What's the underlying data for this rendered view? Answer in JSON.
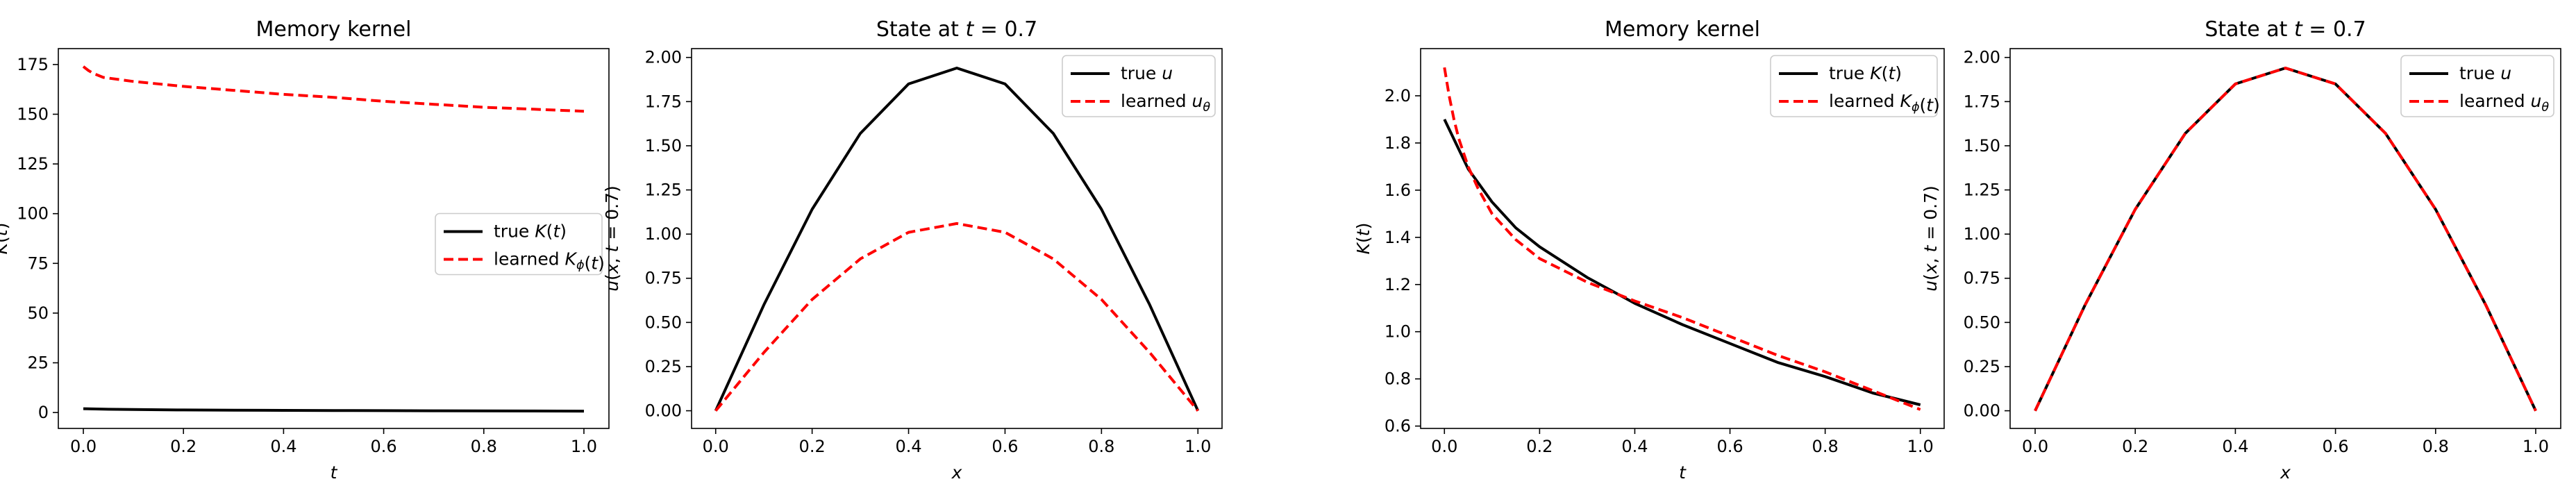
{
  "chart_data": [
    {
      "type": "line",
      "title": "Memory kernel",
      "xlabel": "t",
      "ylabel": "K(t)",
      "xlim": [
        -0.05,
        1.05
      ],
      "ylim": [
        -8,
        183
      ],
      "xticks": [
        "0.0",
        "0.2",
        "0.4",
        "0.6",
        "0.8",
        "1.0"
      ],
      "yticks": [
        "0",
        "25",
        "50",
        "75",
        "100",
        "125",
        "150",
        "175"
      ],
      "legend": {
        "position": "center-right",
        "entries": [
          "true K(t)",
          "learned K_ϕ(t)"
        ]
      },
      "grid": false,
      "series": [
        {
          "name": "true K(t)",
          "color": "#000000",
          "dash": "solid",
          "x": [
            0.0,
            0.05,
            0.1,
            0.2,
            0.3,
            0.4,
            0.5,
            0.6,
            0.7,
            0.8,
            0.9,
            1.0
          ],
          "y": [
            1.9,
            1.65,
            1.5,
            1.3,
            1.17,
            1.08,
            1.0,
            0.93,
            0.86,
            0.8,
            0.75,
            0.7
          ]
        },
        {
          "name": "learned K_ϕ(t)",
          "color": "#ff0000",
          "dash": "dashed",
          "x": [
            0.0,
            0.01,
            0.02,
            0.04,
            0.07,
            0.1,
            0.2,
            0.3,
            0.4,
            0.5,
            0.6,
            0.7,
            0.8,
            0.9,
            1.0
          ],
          "y": [
            174,
            172,
            170.5,
            168.5,
            167.5,
            166.5,
            164,
            162,
            160,
            158.5,
            156.5,
            155,
            153.5,
            152.5,
            151.5
          ]
        }
      ]
    },
    {
      "type": "line",
      "title": "State at t = 0.7",
      "xlabel": "x",
      "ylabel": "u(x, t = 0.7)",
      "xlim": [
        -0.05,
        1.05
      ],
      "ylim": [
        -0.1,
        2.05
      ],
      "xticks": [
        "0.0",
        "0.2",
        "0.4",
        "0.6",
        "0.8",
        "1.0"
      ],
      "yticks": [
        "0.00",
        "0.25",
        "0.50",
        "0.75",
        "1.00",
        "1.25",
        "1.50",
        "1.75",
        "2.00"
      ],
      "legend": {
        "position": "top-right",
        "entries": [
          "true u",
          "learned u_θ"
        ]
      },
      "grid": false,
      "series": [
        {
          "name": "true u",
          "color": "#000000",
          "dash": "solid",
          "x": [
            0.0,
            0.1,
            0.2,
            0.3,
            0.4,
            0.5,
            0.6,
            0.7,
            0.8,
            0.9,
            1.0
          ],
          "y": [
            0.0,
            0.6,
            1.14,
            1.57,
            1.85,
            1.94,
            1.85,
            1.57,
            1.14,
            0.6,
            0.0
          ]
        },
        {
          "name": "learned u_θ",
          "color": "#ff0000",
          "dash": "dashed",
          "x": [
            0.0,
            0.1,
            0.2,
            0.3,
            0.4,
            0.5,
            0.6,
            0.7,
            0.8,
            0.9,
            1.0
          ],
          "y": [
            0.0,
            0.33,
            0.63,
            0.86,
            1.01,
            1.06,
            1.01,
            0.86,
            0.63,
            0.33,
            0.0
          ]
        }
      ]
    },
    {
      "type": "line",
      "title": "Memory kernel",
      "xlabel": "t",
      "ylabel": "K(t)",
      "xlim": [
        -0.05,
        1.05
      ],
      "ylim": [
        0.59,
        2.2
      ],
      "xticks": [
        "0.0",
        "0.2",
        "0.4",
        "0.6",
        "0.8",
        "1.0"
      ],
      "yticks": [
        "0.6",
        "0.8",
        "1.0",
        "1.2",
        "1.4",
        "1.6",
        "1.8",
        "2.0"
      ],
      "legend": {
        "position": "top-right",
        "entries": [
          "true K(t)",
          "learned K_ϕ(t)"
        ]
      },
      "grid": false,
      "series": [
        {
          "name": "true K(t)",
          "color": "#000000",
          "dash": "solid",
          "x": [
            0.0,
            0.05,
            0.1,
            0.15,
            0.2,
            0.3,
            0.4,
            0.5,
            0.6,
            0.7,
            0.8,
            0.9,
            1.0
          ],
          "y": [
            1.9,
            1.69,
            1.55,
            1.44,
            1.36,
            1.23,
            1.12,
            1.03,
            0.95,
            0.87,
            0.81,
            0.74,
            0.69
          ]
        },
        {
          "name": "learned K_ϕ(t)",
          "color": "#ff0000",
          "dash": "dashed",
          "x": [
            0.0,
            0.01,
            0.02,
            0.03,
            0.05,
            0.07,
            0.1,
            0.15,
            0.2,
            0.3,
            0.4,
            0.5,
            0.6,
            0.7,
            0.8,
            0.9,
            1.0
          ],
          "y": [
            2.12,
            2.0,
            1.9,
            1.82,
            1.7,
            1.61,
            1.5,
            1.39,
            1.31,
            1.21,
            1.13,
            1.06,
            0.98,
            0.9,
            0.83,
            0.75,
            0.67
          ]
        }
      ]
    },
    {
      "type": "line",
      "title": "State at t = 0.7",
      "xlabel": "x",
      "ylabel": "u(x, t = 0.7)",
      "xlim": [
        -0.05,
        1.05
      ],
      "ylim": [
        -0.1,
        2.05
      ],
      "xticks": [
        "0.0",
        "0.2",
        "0.4",
        "0.6",
        "0.8",
        "1.0"
      ],
      "yticks": [
        "0.00",
        "0.25",
        "0.50",
        "0.75",
        "1.00",
        "1.25",
        "1.50",
        "1.75",
        "2.00"
      ],
      "legend": {
        "position": "top-right",
        "entries": [
          "true u",
          "learned u_θ"
        ]
      },
      "grid": false,
      "series": [
        {
          "name": "true u",
          "color": "#000000",
          "dash": "solid",
          "x": [
            0.0,
            0.1,
            0.2,
            0.3,
            0.4,
            0.5,
            0.6,
            0.7,
            0.8,
            0.9,
            1.0
          ],
          "y": [
            0.0,
            0.6,
            1.14,
            1.57,
            1.85,
            1.94,
            1.85,
            1.57,
            1.14,
            0.6,
            0.0
          ]
        },
        {
          "name": "learned u_θ",
          "color": "#ff0000",
          "dash": "dashed",
          "x": [
            0.0,
            0.1,
            0.2,
            0.3,
            0.4,
            0.5,
            0.6,
            0.7,
            0.8,
            0.9,
            1.0
          ],
          "y": [
            0.0,
            0.6,
            1.14,
            1.57,
            1.85,
            1.94,
            1.85,
            1.57,
            1.14,
            0.6,
            0.0
          ]
        }
      ]
    }
  ]
}
